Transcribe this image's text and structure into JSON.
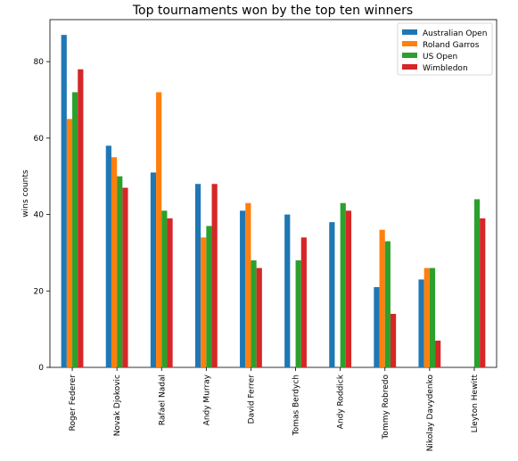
{
  "chart_data": {
    "type": "bar",
    "title": "Top tournaments won by the top ten winners",
    "xlabel": "",
    "ylabel": "wins counts",
    "ylim": [
      0,
      91
    ],
    "yticks": [
      0,
      20,
      40,
      60,
      80
    ],
    "grid": false,
    "legend_position": "top-right",
    "categories": [
      "Roger Federer",
      "Novak Djokovic",
      "Rafael Nadal",
      "Andy Murray",
      "David Ferrer",
      "Tomas Berdych",
      "Andy Roddick",
      "Tommy Robredo",
      "Nikolay Davydenko",
      "Lleyton Hewitt"
    ],
    "series": [
      {
        "name": "Australian Open",
        "color": "#1f77b4",
        "values": [
          87,
          58,
          51,
          48,
          41,
          40,
          38,
          21,
          23,
          null
        ]
      },
      {
        "name": "Roland Garros",
        "color": "#ff7f0e",
        "values": [
          65,
          55,
          72,
          34,
          43,
          null,
          null,
          36,
          26,
          null
        ]
      },
      {
        "name": "US Open",
        "color": "#2ca02c",
        "values": [
          72,
          50,
          41,
          37,
          28,
          28,
          43,
          33,
          26,
          44
        ]
      },
      {
        "name": "Wimbledon",
        "color": "#d62728",
        "values": [
          78,
          47,
          39,
          48,
          26,
          34,
          41,
          14,
          7,
          39
        ]
      }
    ]
  }
}
